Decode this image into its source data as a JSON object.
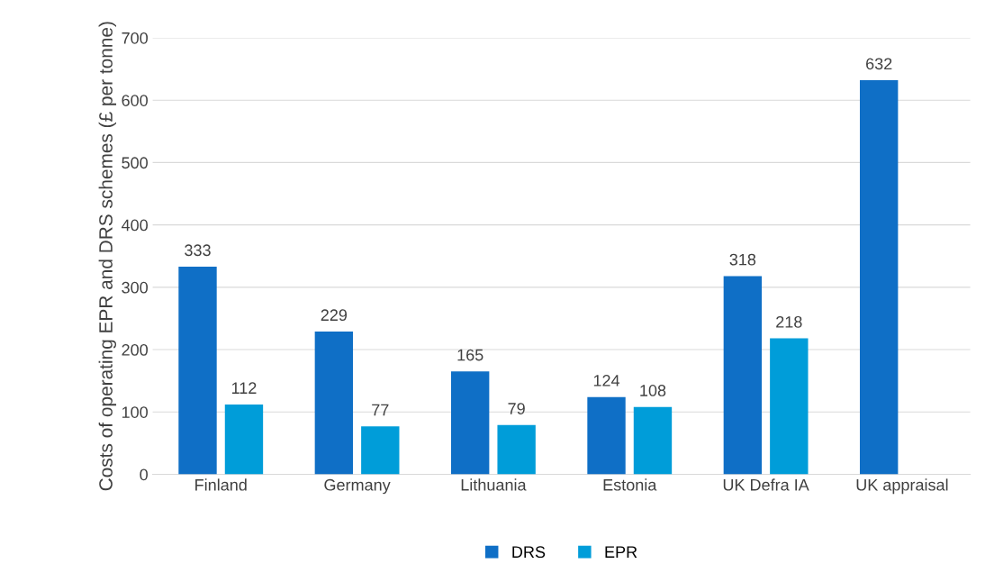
{
  "chart_data": {
    "type": "bar",
    "ylabel": "Costs of operating EPR and DRS schemes (£ per tonne)",
    "categories": [
      "Finland",
      "Germany",
      "Lithuania",
      "Estonia",
      "UK Defra IA",
      "UK appraisal"
    ],
    "series": [
      {
        "name": "DRS",
        "color": "#0f6fc6",
        "values": [
          333,
          229,
          165,
          124,
          318,
          632
        ]
      },
      {
        "name": "EPR",
        "color": "#009dd9",
        "values": [
          112,
          77,
          79,
          108,
          218,
          null
        ]
      }
    ],
    "ylim": [
      0,
      700
    ],
    "yticks": [
      0,
      100,
      200,
      300,
      400,
      500,
      600,
      700
    ],
    "grid": "y",
    "legend": "bottom",
    "data_labels": true
  }
}
